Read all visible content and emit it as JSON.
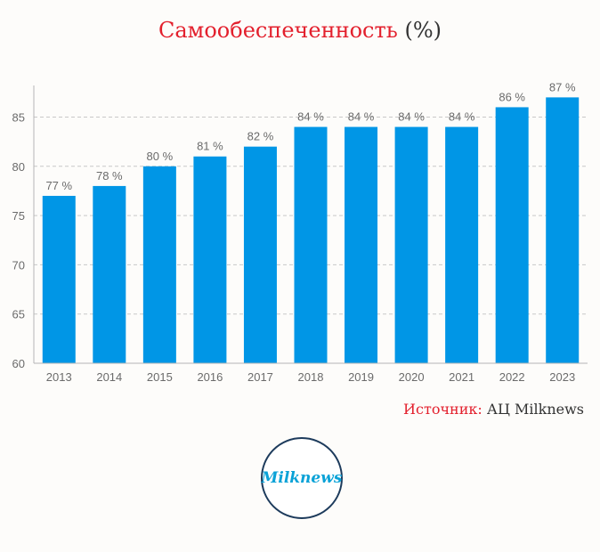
{
  "title": "Самообеспеченность",
  "title_unit": "(%)",
  "source": {
    "label": "Источник:",
    "value": "АЦ Milknews"
  },
  "logo": {
    "text": "Milknews"
  },
  "colors": {
    "bar": "#0096e6",
    "title": "#e3202d",
    "text": "#333333",
    "axis_text": "#6b6b6b",
    "grid": "#c8c8c8"
  },
  "chart_data": {
    "type": "bar",
    "categories": [
      "2013",
      "2014",
      "2015",
      "2016",
      "2017",
      "2018",
      "2019",
      "2020",
      "2021",
      "2022",
      "2023"
    ],
    "values": [
      77,
      78,
      80,
      81,
      82,
      84,
      84,
      84,
      84,
      86,
      87
    ],
    "data_labels": [
      "77 %",
      "78 %",
      "80 %",
      "81 %",
      "82 %",
      "84 %",
      "84 %",
      "84 %",
      "84 %",
      "86 %",
      "87 %"
    ],
    "yticks": [
      60,
      65,
      70,
      75,
      80,
      85
    ],
    "ylim": [
      60,
      89
    ],
    "grid": true,
    "legend": "none"
  }
}
